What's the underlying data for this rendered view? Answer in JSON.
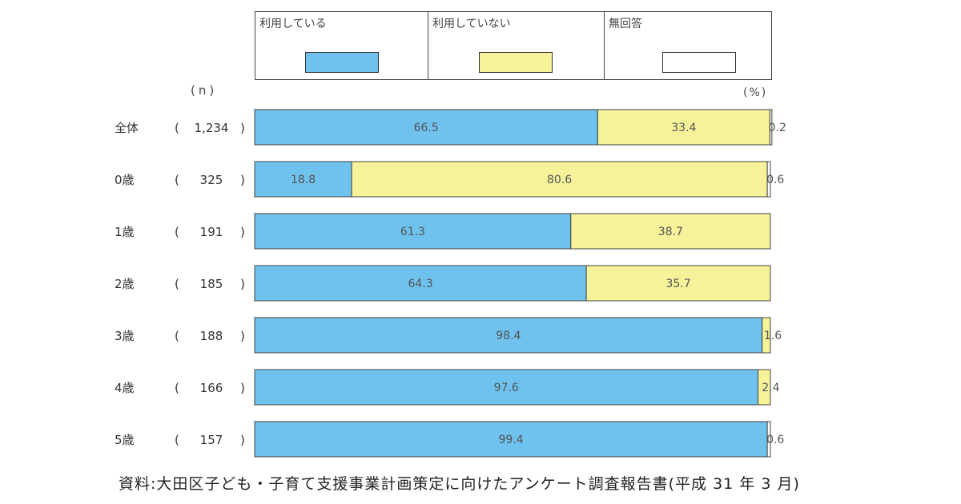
{
  "legend": {
    "items": [
      {
        "label": "利用している",
        "color": "#6fc1ee"
      },
      {
        "label": "利用していない",
        "color": "#f5f29a"
      },
      {
        "label": "無回答",
        "color": "#ffffff"
      }
    ]
  },
  "units": {
    "n": "(n)",
    "percent": "(%)"
  },
  "source": "資料:大田区子ども・子育て支援事業計画策定に向けたアンケート調査報告書(平成 31 年 3 月)",
  "chart_data": {
    "type": "bar",
    "orientation": "horizontal",
    "stacked": true,
    "percent": true,
    "categories": [
      "全体",
      "0歳",
      "1歳",
      "2歳",
      "3歳",
      "4歳",
      "5歳"
    ],
    "n_labels": [
      "1,234",
      "325",
      "191",
      "185",
      "188",
      "166",
      "157"
    ],
    "series": [
      {
        "name": "利用している",
        "values": [
          66.5,
          18.8,
          61.3,
          64.3,
          98.4,
          97.6,
          99.4
        ],
        "color": "#6fc1ee"
      },
      {
        "name": "利用していない",
        "values": [
          33.4,
          80.6,
          38.7,
          35.7,
          1.6,
          2.4,
          0.0
        ],
        "color": "#f5f29a"
      },
      {
        "name": "無回答",
        "values": [
          0.2,
          0.6,
          0.0,
          0.0,
          0.0,
          0.0,
          0.6
        ],
        "color": "#ffffff"
      }
    ],
    "label_text": [
      [
        "66.5",
        "33.4",
        "0.2"
      ],
      [
        "18.8",
        "80.6",
        "0.6"
      ],
      [
        "61.3",
        "38.7",
        ""
      ],
      [
        "64.3",
        "35.7",
        ""
      ],
      [
        "98.4",
        "1.6",
        ""
      ],
      [
        "97.6",
        "2.4",
        ""
      ],
      [
        "99.4",
        "",
        "0.6"
      ]
    ],
    "xlim": [
      0,
      100
    ],
    "legend_position": "top"
  }
}
